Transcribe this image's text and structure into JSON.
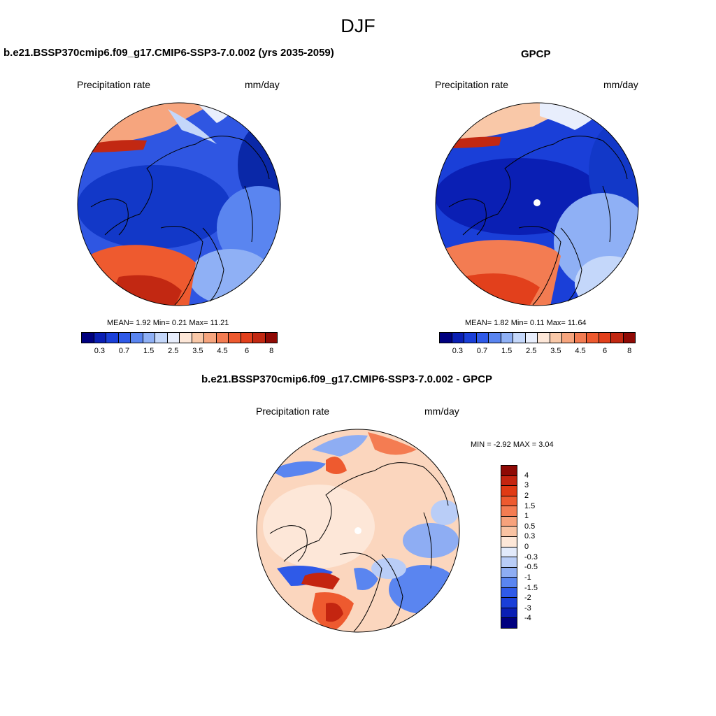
{
  "main_title": "DJF",
  "panels": [
    {
      "title": "b.e21.BSSP370cmip6.f09_g17.CMIP6-SSP3-7.0.002 (yrs 2035-2059)",
      "variable": "Precipitation rate",
      "units": "mm/day",
      "stats": "MEAN=   1.92  Min=   0.21  Max=  11.21"
    },
    {
      "title": "GPCP",
      "variable": "Precipitation rate",
      "units": "mm/day",
      "stats": "MEAN=   1.82  Min=   0.11  Max=  11.64"
    },
    {
      "title": "b.e21.BSSP370cmip6.f09_g17.CMIP6-SSP3-7.0.002 - GPCP",
      "variable": "Precipitation rate",
      "units": "mm/day",
      "stats": "MIN =  -2.92 MAX =   3.04"
    }
  ],
  "abs_colorbar": {
    "labels": [
      "0.3",
      "0.7",
      "1.5",
      "2.5",
      "3.5",
      "4.5",
      "6",
      "8"
    ],
    "colors": [
      "#00007f",
      "#0a1fb4",
      "#1a3fd8",
      "#2f5ae8",
      "#5a85f0",
      "#8fb0f5",
      "#c4d7fa",
      "#e8eefc",
      "#fde7d8",
      "#f9c8a8",
      "#f6a57e",
      "#f37c52",
      "#ee5a2f",
      "#e2401c",
      "#c22812",
      "#8f0a05"
    ]
  },
  "diff_colorbar": {
    "labels": [
      "4",
      "3",
      "2",
      "1.5",
      "1",
      "0.5",
      "0.3",
      "0",
      "-0.3",
      "-0.5",
      "-1",
      "-1.5",
      "-2",
      "-3",
      "-4"
    ],
    "colors": [
      "#8f0a05",
      "#c42510",
      "#e03a14",
      "#ee5a2f",
      "#f47c52",
      "#f7a27c",
      "#f9c3a3",
      "#fde7d8",
      "#e2eafb",
      "#b9cdf7",
      "#8eadf3",
      "#5a85f0",
      "#2f5ae8",
      "#1a3fd8",
      "#0a1fb4",
      "#00007f"
    ]
  },
  "map_style": {
    "deep_blue": "#1238c8",
    "mid_blue": "#3c64e6",
    "light_blue": "#9ab8f2",
    "light_red": "#f6b48e",
    "red": "#ee5a2f",
    "dark_red": "#c22812",
    "diff_base": "#fbd6be"
  }
}
